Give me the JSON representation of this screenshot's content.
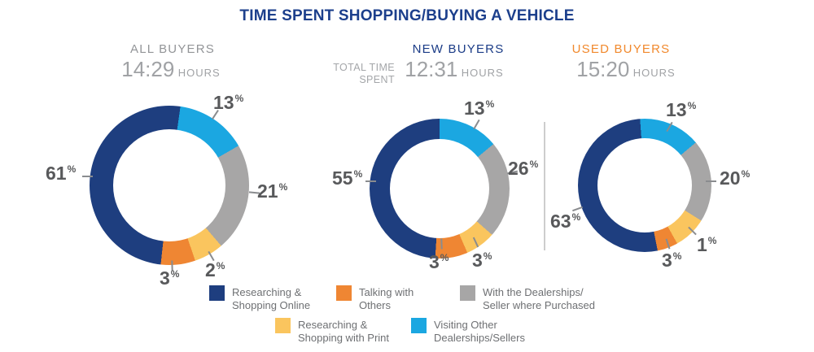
{
  "percent_sign": "%",
  "hours_unit": "HOURS",
  "chart_data": {
    "type": "pie",
    "subtype": "donut",
    "title": "TIME SPENT SHOPPING/BUYING A VEHICLE",
    "row_label": "TOTAL TIME SPENT",
    "legend_position": "bottom",
    "colors": {
      "navy": "#1E3E7F",
      "orange": "#EF8633",
      "gray": "#A7A6A6",
      "yellow": "#FAC55E",
      "lightblue": "#1BA7E1",
      "title_navy": "#1C3F8C",
      "label_gray": "#58595B"
    },
    "legend": [
      {
        "color": "#1E3E7F",
        "label": "Researching & Shopping Online",
        "lines": [
          "Researching &",
          "Shopping Online"
        ]
      },
      {
        "color": "#EF8633",
        "label": "Talking with Others",
        "lines": [
          "Talking with",
          "Others"
        ]
      },
      {
        "color": "#A7A6A6",
        "label": "With the Dealerships/Seller where Purchased",
        "lines": [
          "With the Dealerships/",
          "Seller where Purchased"
        ]
      },
      {
        "color": "#FAC55E",
        "label": "Researching & Shopping with Print",
        "lines": [
          "Researching &",
          "Shopping with Print"
        ]
      },
      {
        "color": "#1BA7E1",
        "label": "Visiting Other Dealerships/Sellers",
        "lines": [
          "Visiting Other",
          "Dealerships/Sellers"
        ]
      }
    ],
    "charts": [
      {
        "name": "ALL BUYERS",
        "name_color": "#939598",
        "total_time": "14:29",
        "start_angle": 8,
        "segments": [
          {
            "label": "Visiting Other Dealerships/Sellers",
            "value": 13,
            "display_pct": 14.5,
            "color": "#1BA7E1"
          },
          {
            "label": "With the Dealerships/Seller where Purchased",
            "value": 21,
            "display_pct": 22,
            "color": "#A7A6A6"
          },
          {
            "label": "Researching & Shopping with Print",
            "value": 2,
            "display_pct": 6,
            "color": "#FAC55E"
          },
          {
            "label": "Talking with Others",
            "value": 3,
            "display_pct": 7,
            "color": "#EF8633"
          },
          {
            "label": "Researching & Shopping Online",
            "value": 61,
            "display_pct": 50.5,
            "color": "#1E3E7F"
          }
        ]
      },
      {
        "name": "NEW BUYERS",
        "name_color": "#1B3C87",
        "total_time": "12:31",
        "start_angle": 0,
        "segments": [
          {
            "label": "Visiting Other Dealerships/Sellers",
            "value": 13,
            "display_pct": 14,
            "color": "#1BA7E1"
          },
          {
            "label": "With the Dealerships/Seller where Purchased",
            "value": 26,
            "display_pct": 22.5,
            "color": "#A7A6A6"
          },
          {
            "label": "Researching & Shopping with Print",
            "value": 3,
            "display_pct": 7,
            "color": "#FAC55E"
          },
          {
            "label": "Talking with Others",
            "value": 3,
            "display_pct": 7.5,
            "color": "#EF8633"
          },
          {
            "label": "Researching & Shopping Online",
            "value": 55,
            "display_pct": 49,
            "color": "#1E3E7F"
          }
        ]
      },
      {
        "name": "USED BUYERS",
        "name_color": "#F1892D",
        "total_time": "15:20",
        "start_angle": -4,
        "segments": [
          {
            "label": "Visiting Other Dealerships/Sellers",
            "value": 13,
            "display_pct": 15,
            "color": "#1BA7E1"
          },
          {
            "label": "With the Dealerships/Seller where Purchased",
            "value": 20,
            "display_pct": 20,
            "color": "#A7A6A6"
          },
          {
            "label": "Researching & Shopping with Print",
            "value": 1,
            "display_pct": 8,
            "color": "#FAC55E"
          },
          {
            "label": "Talking with Others",
            "value": 3,
            "display_pct": 5,
            "color": "#EF8633"
          },
          {
            "label": "Researching & Shopping Online",
            "value": 63,
            "display_pct": 52,
            "color": "#1E3E7F"
          }
        ]
      }
    ]
  }
}
